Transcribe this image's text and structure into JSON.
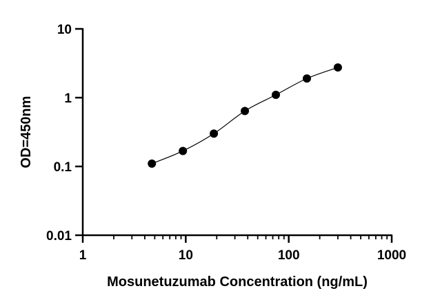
{
  "chart_data": {
    "type": "scatter",
    "title": "",
    "xlabel": "Mosunetuzumab Concentration (ng/mL)",
    "ylabel": "OD=450nm",
    "x_scale": "log",
    "y_scale": "log",
    "xlim": [
      1,
      1000
    ],
    "ylim": [
      0.01,
      10
    ],
    "x_ticks": [
      1,
      10,
      100,
      1000
    ],
    "x_tick_labels": [
      "1",
      "10",
      "100",
      "1000"
    ],
    "y_ticks": [
      0.01,
      0.1,
      1,
      10
    ],
    "y_tick_labels": [
      "0.01",
      "0.1",
      "1",
      "10"
    ],
    "grid": false,
    "fit_curve": true,
    "series": [
      {
        "x": [
          4.69,
          9.38,
          18.75,
          37.5,
          75,
          150,
          300
        ],
        "y": [
          0.11,
          0.168,
          0.3,
          0.64,
          1.1,
          1.9,
          2.75
        ]
      }
    ],
    "colors": {
      "marker": "#000000",
      "curve": "#000000",
      "axis": "#000000"
    }
  }
}
